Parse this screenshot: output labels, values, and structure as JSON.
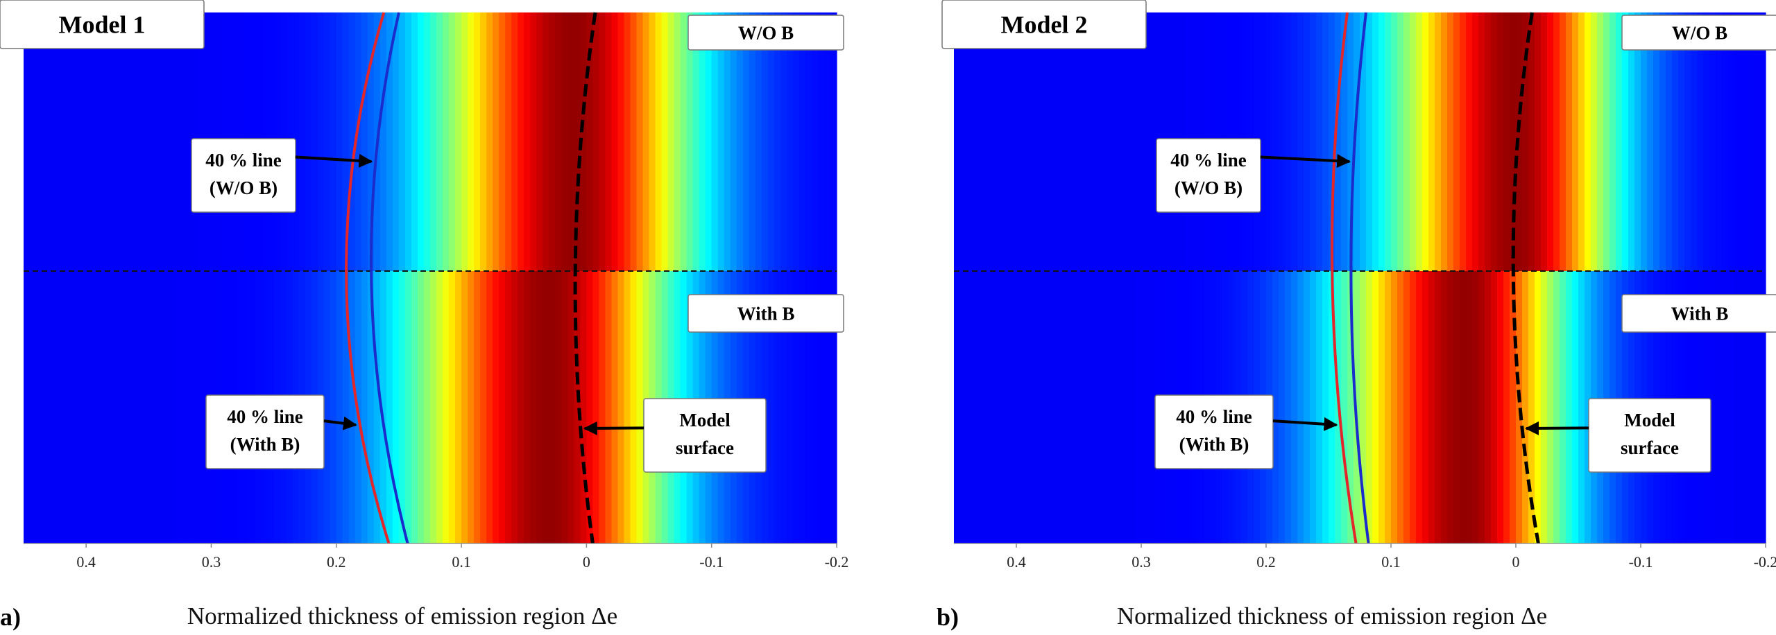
{
  "chart_data": [
    {
      "type": "heatmap",
      "panel_label": "a)",
      "model_label": "Model 1",
      "top_label": "W/O B",
      "bottom_label": "With B",
      "xlabel": "Normalized thickness of emission region Δe",
      "xlim": [
        0.45,
        -0.2
      ],
      "xticks": [
        0.4,
        0.3,
        0.2,
        0.1,
        0,
        -0.1,
        -0.2
      ],
      "xtick_labels": [
        "0.4",
        "0.3",
        "0.2",
        "0.1",
        "0",
        "-0.1",
        "-0.2"
      ],
      "lines": [
        {
          "name": "40 % line (W/O B)",
          "color": "#1a2ccc",
          "x_top": 0.15,
          "x_mid": 0.172,
          "x_bottom": 0.143
        },
        {
          "name": "40 % line (With B)",
          "color": "#e2262a",
          "x_top": 0.162,
          "x_mid": 0.192,
          "x_bottom": 0.158
        },
        {
          "name": "Model surface",
          "color": "#000000",
          "style": "dashed",
          "x_top": -0.007,
          "x_mid": 0.009,
          "x_bottom": -0.005
        }
      ],
      "annotations": [
        {
          "lines": [
            "40 % line",
            "(W/O B)"
          ],
          "target": "40 % line (W/O B)"
        },
        {
          "lines": [
            "40 % line",
            "(With B)"
          ],
          "target": "40 % line (With B)"
        },
        {
          "lines": [
            "Model",
            "surface"
          ],
          "target": "Model surface"
        }
      ],
      "intensity_peak": {
        "W/O B": 0.01,
        "With B": 0.03
      },
      "divider": "dashed horizontal line between W/O B and With B halves"
    },
    {
      "type": "heatmap",
      "panel_label": "b)",
      "model_label": "Model 2",
      "top_label": "W/O B",
      "bottom_label": "With B",
      "xlabel": "Normalized thickness of emission region Δe",
      "xlim": [
        0.45,
        -0.2
      ],
      "xticks": [
        0.4,
        0.3,
        0.2,
        0.1,
        0,
        -0.1,
        -0.2
      ],
      "xtick_labels": [
        "0.4",
        "0.3",
        "0.2",
        "0.1",
        "0",
        "-0.1",
        "-0.2"
      ],
      "lines": [
        {
          "name": "40 % line (W/O B)",
          "color": "#1a2ccc",
          "x_top": 0.12,
          "x_mid": 0.132,
          "x_bottom": 0.118
        },
        {
          "name": "40 % line (With B)",
          "color": "#e2262a",
          "x_top": 0.135,
          "x_mid": 0.147,
          "x_bottom": 0.128
        },
        {
          "name": "Model surface",
          "color": "#000000",
          "style": "dashed",
          "x_top": -0.013,
          "x_mid": 0.002,
          "x_bottom": -0.018
        }
      ],
      "annotations": [
        {
          "lines": [
            "40 % line",
            "(W/O B)"
          ],
          "target": "40 % line (W/O B)"
        },
        {
          "lines": [
            "40 % line",
            "(With B)"
          ],
          "target": "40 % line (With B)"
        },
        {
          "lines": [
            "Model",
            "surface"
          ],
          "target": "Model surface"
        }
      ],
      "intensity_peak": {
        "W/O B": 0.0,
        "With B": 0.04
      },
      "divider": "dashed horizontal line between W/O B and With B halves"
    }
  ]
}
